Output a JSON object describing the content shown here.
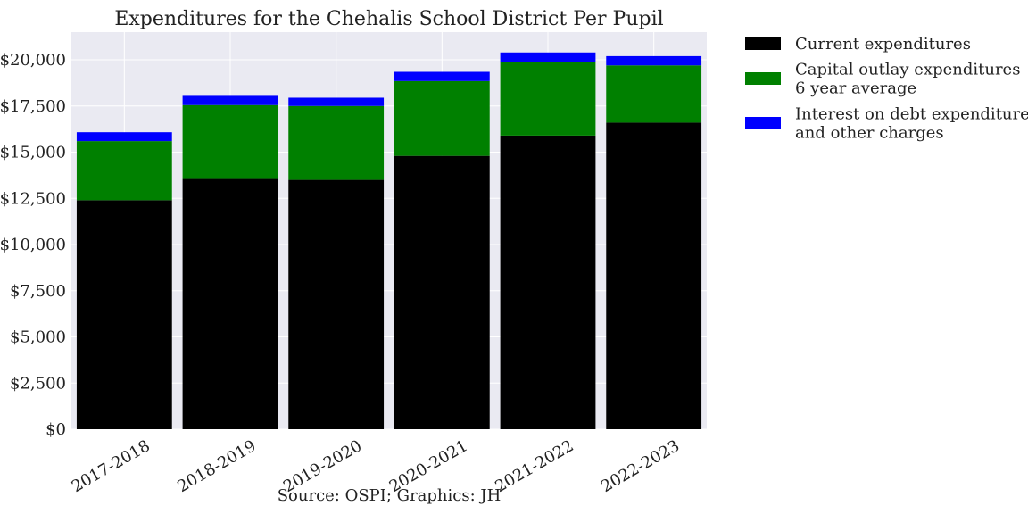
{
  "chart_data": {
    "type": "bar",
    "stacked": true,
    "title": "Expenditures for the Chehalis School District Per Pupil",
    "xlabel": "Source: OSPI; Graphics: JH",
    "ylabel": "",
    "categories": [
      "2017-2018",
      "2018-2019",
      "2019-2020",
      "2020-2021",
      "2021-2022",
      "2022-2023"
    ],
    "series": [
      {
        "name": "Current expenditures",
        "color": "#000000",
        "values": [
          12400,
          13550,
          13500,
          14800,
          15900,
          16600
        ]
      },
      {
        "name": "Capital outlay expenditures\n6 year average",
        "color": "#008000",
        "values": [
          3200,
          4000,
          4000,
          4050,
          4000,
          3100
        ]
      },
      {
        "name": "Interest on debt expenditures\nand other charges",
        "color": "#0000ff",
        "values": [
          480,
          500,
          450,
          500,
          500,
          500
        ]
      }
    ],
    "ylim": [
      0,
      21500
    ],
    "yticks": [
      0,
      2500,
      5000,
      7500,
      10000,
      12500,
      15000,
      17500,
      20000
    ],
    "ytick_labels": [
      "$0",
      "$2,500",
      "$5,000",
      "$7,500",
      "$10,000",
      "$12,500",
      "$15,000",
      "$17,500",
      "$20,000"
    ],
    "grid": true,
    "legend_position": "outside-right-top",
    "plot_background": "#eaeaf2"
  }
}
